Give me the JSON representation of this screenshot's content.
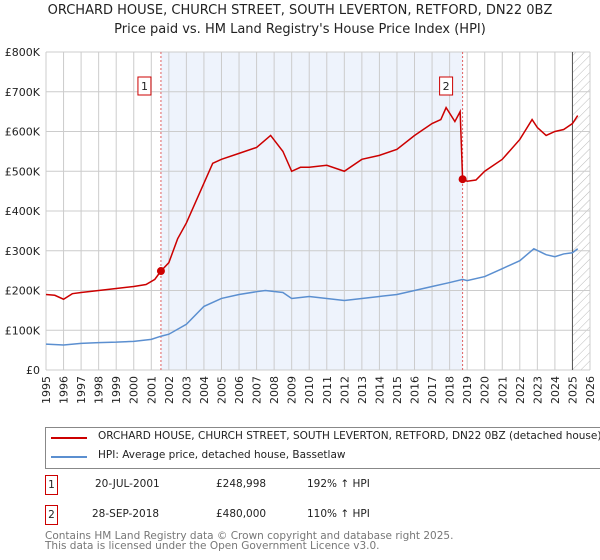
{
  "chart_data": {
    "type": "line",
    "title": "ORCHARD HOUSE, CHURCH STREET, SOUTH LEVERTON, RETFORD, DN22 0BZ",
    "subtitle": "Price paid vs. HM Land Registry's House Price Index (HPI)",
    "xlim": [
      1995,
      2026
    ],
    "ylim": [
      0,
      800000
    ],
    "yticks": [
      0,
      100000,
      200000,
      300000,
      400000,
      500000,
      600000,
      700000,
      800000
    ],
    "ytick_labels": [
      "£0",
      "£100K",
      "£200K",
      "£300K",
      "£400K",
      "£500K",
      "£600K",
      "£700K",
      "£800K"
    ],
    "xticks": [
      1995,
      1996,
      1997,
      1998,
      1999,
      2000,
      2001,
      2002,
      2003,
      2004,
      2005,
      2006,
      2007,
      2008,
      2009,
      2010,
      2011,
      2012,
      2013,
      2014,
      2015,
      2016,
      2017,
      2018,
      2019,
      2020,
      2021,
      2022,
      2023,
      2024,
      2025,
      2026
    ],
    "grid": true,
    "shaded_range": [
      2001.55,
      2018.74
    ],
    "hatched_from": 2025.0,
    "series": [
      {
        "name": "ORCHARD HOUSE, CHURCH STREET, SOUTH LEVERTON, RETFORD, DN22 0BZ (detached house)",
        "color": "#cc0000",
        "x": [
          1995,
          1995.5,
          1996,
          1996.5,
          1997,
          1998,
          1999,
          2000,
          2000.7,
          2001.2,
          2001.55,
          2002,
          2002.5,
          2003,
          2003.5,
          2004,
          2004.5,
          2005,
          2006,
          2007,
          2007.8,
          2008.5,
          2009,
          2009.5,
          2010,
          2011,
          2012,
          2013,
          2014,
          2015,
          2016,
          2016.5,
          2017,
          2017.5,
          2017.8,
          2018.3,
          2018.6,
          2018.74,
          2019,
          2019.5,
          2020,
          2021,
          2022,
          2022.7,
          2023,
          2023.5,
          2024,
          2024.5,
          2025,
          2025.3
        ],
        "y": [
          190000,
          188000,
          178000,
          192000,
          195000,
          200000,
          205000,
          210000,
          215000,
          228000,
          248998,
          270000,
          330000,
          370000,
          420000,
          470000,
          520000,
          530000,
          545000,
          560000,
          590000,
          550000,
          500000,
          510000,
          510000,
          515000,
          500000,
          530000,
          540000,
          555000,
          590000,
          605000,
          620000,
          630000,
          660000,
          625000,
          650000,
          480000,
          475000,
          478000,
          500000,
          530000,
          580000,
          630000,
          610000,
          590000,
          600000,
          605000,
          620000,
          640000
        ]
      },
      {
        "name": "HPI: Average price, detached house, Bassetlaw",
        "color": "#5b8fd0",
        "x": [
          1995,
          1996,
          1997,
          1998,
          1999,
          2000,
          2001,
          2001.55,
          2002,
          2003,
          2004,
          2005,
          2006,
          2007,
          2007.5,
          2008.5,
          2009,
          2010,
          2011,
          2012,
          2013,
          2014,
          2015,
          2016,
          2017,
          2018,
          2018.74,
          2019,
          2020,
          2021,
          2022,
          2022.8,
          2023.5,
          2024,
          2024.5,
          2025,
          2025.3
        ],
        "y": [
          65000,
          63000,
          67000,
          69000,
          70000,
          72000,
          77000,
          85000,
          90000,
          115000,
          160000,
          180000,
          190000,
          197000,
          200000,
          195000,
          180000,
          185000,
          180000,
          175000,
          180000,
          185000,
          190000,
          200000,
          210000,
          220000,
          228000,
          225000,
          235000,
          255000,
          275000,
          305000,
          290000,
          285000,
          292000,
          295000,
          305000
        ]
      }
    ],
    "annotations": [
      {
        "label": "1",
        "x": 2001.55,
        "y": 248998,
        "date": "20-JUL-2001",
        "price": "£248,998",
        "hpi": "192% ↑ HPI"
      },
      {
        "label": "2",
        "x": 2018.74,
        "y": 480000,
        "date": "28-SEP-2018",
        "price": "£480,000",
        "hpi": "110% ↑ HPI"
      }
    ],
    "footer": [
      "Contains HM Land Registry data © Crown copyright and database right 2025.",
      "This data is licensed under the Open Government Licence v3.0."
    ]
  }
}
